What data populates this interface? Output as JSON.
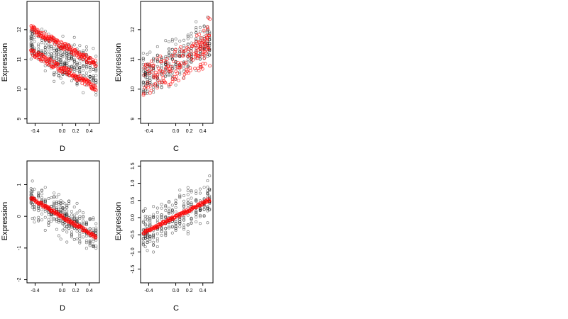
{
  "chart_data": [
    {
      "type": "scatter",
      "title": "",
      "xlabel": "D",
      "ylabel": "Expression",
      "xlim": [
        -0.52,
        0.55
      ],
      "ylim": [
        8.85,
        12.95
      ],
      "xticks": [
        -0.4,
        0.0,
        0.2,
        0.4
      ],
      "xtick_labels": [
        "-0.4",
        "0.0",
        "0.2",
        "0.4"
      ],
      "yticks": [
        9,
        10,
        11,
        12
      ],
      "ytick_labels": [
        "9",
        "10",
        "11",
        "12"
      ],
      "x_groups": [
        -0.46,
        -0.44,
        -0.41,
        -0.35,
        -0.3,
        -0.25,
        -0.2,
        -0.16,
        -0.12,
        -0.08,
        -0.05,
        -0.02,
        0.01,
        0.04,
        0.07,
        0.1,
        0.14,
        0.18,
        0.22,
        0.26,
        0.31,
        0.36,
        0.41,
        0.46,
        0.5
      ],
      "observed": {
        "color": "#000000",
        "marker": "open-circle",
        "center_start": 11.6,
        "center_end": 10.5,
        "spread": 1.0,
        "points_per_group": 14,
        "seed": 11
      },
      "fitted": [
        {
          "color": "#ff0000",
          "marker": "open-circle",
          "x_start": -0.46,
          "x_end": 0.5,
          "y_start": 12.05,
          "y_end": 10.85,
          "band": 0.12
        },
        {
          "color": "#ff0000",
          "marker": "open-circle",
          "x_start": -0.46,
          "x_end": 0.5,
          "y_start": 11.25,
          "y_end": 10.05,
          "band": 0.12
        }
      ]
    },
    {
      "type": "scatter",
      "title": "",
      "xlabel": "C",
      "ylabel": "Expression",
      "xlim": [
        -0.52,
        0.55
      ],
      "ylim": [
        8.85,
        12.95
      ],
      "xticks": [
        -0.4,
        0.0,
        0.2,
        0.4
      ],
      "xtick_labels": [
        "-0.4",
        "0.0",
        "0.2",
        "0.4"
      ],
      "yticks": [
        9,
        10,
        11,
        12
      ],
      "ytick_labels": [
        "9",
        "10",
        "11",
        "12"
      ],
      "x_groups": [
        -0.48,
        -0.45,
        -0.42,
        -0.38,
        -0.33,
        -0.27,
        -0.21,
        -0.15,
        -0.1,
        -0.05,
        0.0,
        0.06,
        0.12,
        0.18,
        0.23,
        0.3,
        0.36,
        0.42,
        0.47,
        0.5
      ],
      "observed": {
        "color": "#000000",
        "marker": "open-circle",
        "center_start": 10.4,
        "center_end": 11.6,
        "spread": 1.1,
        "points_per_group": 15,
        "seed": 23
      },
      "fitted": [
        {
          "color": "#ff0000",
          "marker": "open-circle",
          "x_start": -0.48,
          "x_end": 0.5,
          "y_start": 10.3,
          "y_end": 11.3,
          "band": 0.55
        },
        {
          "color": "#ff0000",
          "marker": "open-circle",
          "x_start": 0.3,
          "x_end": 0.5,
          "y_start": 11.4,
          "y_end": 11.9,
          "band": 0.55
        }
      ]
    },
    {
      "type": "scatter",
      "title": "",
      "xlabel": "D",
      "ylabel": "Expression",
      "xlim": [
        -0.52,
        0.55
      ],
      "ylim": [
        -2.1,
        1.75
      ],
      "xticks": [
        -0.4,
        0.0,
        0.2,
        0.4
      ],
      "xtick_labels": [
        "-0.4",
        "0.0",
        "0.2",
        "0.4"
      ],
      "yticks": [
        -2,
        -1,
        0,
        1
      ],
      "ytick_labels": [
        "-2",
        "-1",
        "0",
        "1"
      ],
      "x_groups": [
        -0.46,
        -0.44,
        -0.41,
        -0.35,
        -0.3,
        -0.25,
        -0.2,
        -0.16,
        -0.12,
        -0.08,
        -0.05,
        -0.02,
        0.01,
        0.04,
        0.07,
        0.1,
        0.14,
        0.18,
        0.22,
        0.26,
        0.31,
        0.36,
        0.41,
        0.46,
        0.5
      ],
      "observed": {
        "color": "#000000",
        "marker": "open-circle",
        "center_start": 0.55,
        "center_end": -0.6,
        "spread": 0.85,
        "points_per_group": 13,
        "seed": 37
      },
      "fitted": [
        {
          "color": "#ff0000",
          "marker": "open-circle",
          "x_start": -0.46,
          "x_end": 0.5,
          "y_start": 0.58,
          "y_end": -0.65,
          "band": 0.05
        }
      ]
    },
    {
      "type": "scatter",
      "title": "",
      "xlabel": "C",
      "ylabel": "Expression",
      "xlim": [
        -0.52,
        0.55
      ],
      "ylim": [
        -1.9,
        1.65
      ],
      "xticks": [
        -0.4,
        0.0,
        0.2,
        0.4
      ],
      "xtick_labels": [
        "-0.4",
        "0.0",
        "0.2",
        "0.4"
      ],
      "yticks": [
        -1.5,
        -1.0,
        -0.5,
        0.0,
        0.5,
        1.0,
        1.5
      ],
      "ytick_labels": [
        "-1.5",
        "-1.0",
        "-0.5",
        "0.0",
        "0.5",
        "1.0",
        "1.5"
      ],
      "x_groups": [
        -0.48,
        -0.45,
        -0.42,
        -0.38,
        -0.33,
        -0.27,
        -0.21,
        -0.15,
        -0.1,
        -0.05,
        0.0,
        0.06,
        0.12,
        0.18,
        0.23,
        0.3,
        0.36,
        0.42,
        0.47,
        0.5
      ],
      "observed": {
        "color": "#000000",
        "marker": "open-circle",
        "center_start": -0.4,
        "center_end": 0.5,
        "spread": 0.85,
        "points_per_group": 14,
        "seed": 53
      },
      "fitted": [
        {
          "color": "#ff0000",
          "marker": "open-circle",
          "x_start": -0.48,
          "x_end": 0.5,
          "y_start": -0.45,
          "y_end": 0.52,
          "band": 0.04
        }
      ]
    }
  ]
}
